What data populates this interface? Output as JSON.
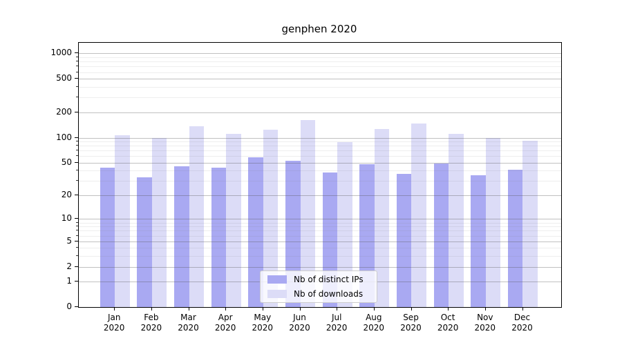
{
  "chart_data": {
    "type": "bar",
    "title": "genphen 2020",
    "categories": [
      "Jan",
      "Feb",
      "Mar",
      "Apr",
      "May",
      "Jun",
      "Jul",
      "Aug",
      "Sep",
      "Oct",
      "Nov",
      "Dec"
    ],
    "category_year": "2020",
    "series": [
      {
        "name": "Nb of distinct IPs",
        "color": "#a9a9f2",
        "values": [
          44,
          33,
          45,
          44,
          58,
          53,
          38,
          48,
          37,
          49,
          35,
          41
        ]
      },
      {
        "name": "Nb of downloads",
        "color": "#dcdcf7",
        "values": [
          107,
          99,
          137,
          110,
          124,
          163,
          88,
          126,
          148,
          111,
          99,
          91
        ]
      }
    ],
    "yscale": "log1p",
    "yticks": [
      0,
      1,
      2,
      5,
      10,
      20,
      50,
      100,
      200,
      500,
      1000
    ],
    "ylim": [
      0,
      1290
    ],
    "xlabel": "",
    "ylabel": "",
    "grid": "both",
    "legend_position": "lower center",
    "colors": {
      "background": "#ffffff",
      "spine": "#000000",
      "grid_major": "#c6c6c6",
      "grid_minor": "#e9e9e9",
      "legend_border": "#cccccc"
    }
  }
}
